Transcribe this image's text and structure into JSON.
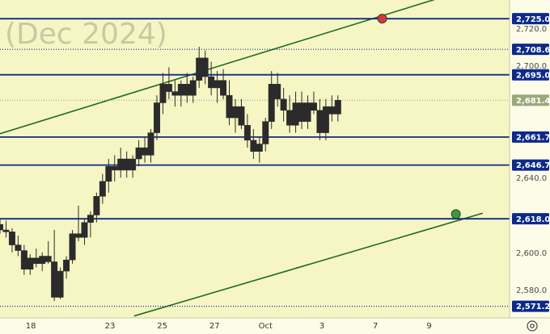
{
  "watermark": "(Dec 2024)",
  "settings_icon": "gear-icon",
  "colors": {
    "background": "#f6f6c4",
    "axis_background": "#fcfce8",
    "candles": "#2b2b2b",
    "level_line": "#0d2a8a",
    "channel_line": "#1e6b1e",
    "upper_marker": "#d03a3a",
    "lower_marker": "#3a9a3a",
    "current_price_box": "#9aa87a"
  },
  "chart_data": {
    "type": "candlestick",
    "title": "",
    "ylim": [
      2565,
      2735
    ],
    "xlim": [
      0,
      38
    ],
    "y_ticks": [
      {
        "value": 2720,
        "label": "2,720.0"
      },
      {
        "value": 2700,
        "label": "2,700.0"
      },
      {
        "value": 2640,
        "label": "2,640.0"
      },
      {
        "value": 2600,
        "label": "2,600.0"
      },
      {
        "value": 2580,
        "label": "2,580.0"
      }
    ],
    "x_ticks": [
      {
        "x": 2.3,
        "label": "18"
      },
      {
        "x": 8.2,
        "label": "23"
      },
      {
        "x": 12.1,
        "label": "25"
      },
      {
        "x": 16.0,
        "label": "27"
      },
      {
        "x": 19.8,
        "label": "Oct"
      },
      {
        "x": 24.0,
        "label": "3"
      },
      {
        "x": 28.0,
        "label": "7"
      },
      {
        "x": 32.0,
        "label": "9"
      }
    ],
    "levels": [
      {
        "value": 2725.0,
        "label": "2,725.0",
        "style": "solid"
      },
      {
        "value": 2708.6,
        "label": "2,708.6",
        "style": "dotted"
      },
      {
        "value": 2695.0,
        "label": "2,695.0",
        "style": "solid"
      },
      {
        "value": 2661.7,
        "label": "2,661.7",
        "style": "solid"
      },
      {
        "value": 2646.7,
        "label": "2,646.7",
        "style": "solid"
      },
      {
        "value": 2618.0,
        "label": "2,618.0",
        "style": "solid"
      },
      {
        "value": 2571.2,
        "label": "2,571.2",
        "style": "dotted"
      }
    ],
    "current_price": {
      "value": 2681.4,
      "label": "2,681.4"
    },
    "channel_lines": [
      {
        "name": "upper",
        "points": [
          [
            0,
            2663.5
          ],
          [
            35,
            2741
          ]
        ],
        "marker": {
          "x": 28.5,
          "y": 2725.0
        }
      },
      {
        "name": "lower",
        "points": [
          [
            10,
            2566
          ],
          [
            36,
            2621
          ]
        ],
        "marker": {
          "x": 34.0,
          "y": 2620.5
        }
      }
    ],
    "candles": [
      [
        0.0,
        2615,
        2618,
        2610,
        2612
      ],
      [
        0.45,
        2612,
        2617,
        2608,
        2611
      ],
      [
        0.9,
        2611,
        2613,
        2600,
        2604
      ],
      [
        1.35,
        2604,
        2609,
        2598,
        2601
      ],
      [
        1.8,
        2601,
        2604,
        2588,
        2591
      ],
      [
        2.25,
        2591,
        2599,
        2588,
        2597
      ],
      [
        2.7,
        2597,
        2602,
        2592,
        2594
      ],
      [
        3.15,
        2594,
        2600,
        2590,
        2598
      ],
      [
        3.6,
        2598,
        2606,
        2594,
        2595
      ],
      [
        4.05,
        2595,
        2612,
        2574,
        2576
      ],
      [
        4.5,
        2576,
        2592,
        2575,
        2590
      ],
      [
        4.95,
        2590,
        2598,
        2586,
        2596
      ],
      [
        5.4,
        2596,
        2612,
        2594,
        2610
      ],
      [
        5.85,
        2610,
        2625,
        2606,
        2608
      ],
      [
        6.3,
        2608,
        2618,
        2604,
        2616
      ],
      [
        6.75,
        2616,
        2622,
        2608,
        2620
      ],
      [
        7.2,
        2620,
        2632,
        2616,
        2630
      ],
      [
        7.65,
        2630,
        2642,
        2626,
        2638
      ],
      [
        8.1,
        2638,
        2650,
        2632,
        2646
      ],
      [
        8.55,
        2646,
        2652,
        2638,
        2644
      ],
      [
        9.0,
        2644,
        2656,
        2640,
        2650
      ],
      [
        9.45,
        2650,
        2654,
        2640,
        2644
      ],
      [
        9.9,
        2644,
        2652,
        2640,
        2650
      ],
      [
        10.35,
        2650,
        2660,
        2646,
        2656
      ],
      [
        10.8,
        2656,
        2662,
        2648,
        2652
      ],
      [
        11.25,
        2652,
        2666,
        2648,
        2664
      ],
      [
        11.7,
        2664,
        2684,
        2660,
        2680
      ],
      [
        12.15,
        2680,
        2696,
        2674,
        2690
      ],
      [
        12.6,
        2690,
        2699,
        2682,
        2686
      ],
      [
        13.05,
        2686,
        2692,
        2678,
        2684
      ],
      [
        13.5,
        2684,
        2692,
        2678,
        2690
      ],
      [
        13.95,
        2690,
        2696,
        2680,
        2684
      ],
      [
        14.4,
        2684,
        2694,
        2680,
        2692
      ],
      [
        14.85,
        2692,
        2710,
        2688,
        2704
      ],
      [
        15.3,
        2704,
        2708,
        2690,
        2694
      ],
      [
        15.75,
        2694,
        2702,
        2684,
        2688
      ],
      [
        16.2,
        2688,
        2697,
        2680,
        2692
      ],
      [
        16.65,
        2692,
        2698,
        2682,
        2684
      ],
      [
        17.1,
        2684,
        2692,
        2668,
        2672
      ],
      [
        17.55,
        2672,
        2682,
        2664,
        2678
      ],
      [
        18.0,
        2678,
        2682,
        2666,
        2668
      ],
      [
        18.45,
        2668,
        2674,
        2656,
        2660
      ],
      [
        18.9,
        2660,
        2666,
        2650,
        2654
      ],
      [
        19.35,
        2654,
        2662,
        2648,
        2658
      ],
      [
        19.8,
        2658,
        2672,
        2654,
        2670
      ],
      [
        20.25,
        2670,
        2697,
        2666,
        2690
      ],
      [
        20.7,
        2690,
        2696,
        2678,
        2682
      ],
      [
        21.15,
        2682,
        2688,
        2670,
        2676
      ],
      [
        21.6,
        2676,
        2684,
        2664,
        2668
      ],
      [
        22.05,
        2668,
        2686,
        2664,
        2680
      ],
      [
        22.5,
        2680,
        2686,
        2666,
        2670
      ],
      [
        22.95,
        2670,
        2684,
        2666,
        2680
      ],
      [
        23.4,
        2680,
        2686,
        2674,
        2676
      ],
      [
        23.85,
        2676,
        2682,
        2660,
        2664
      ],
      [
        24.3,
        2664,
        2682,
        2660,
        2678
      ],
      [
        24.75,
        2678,
        2684,
        2670,
        2674
      ],
      [
        25.2,
        2674,
        2684,
        2670,
        2681.4
      ]
    ]
  }
}
